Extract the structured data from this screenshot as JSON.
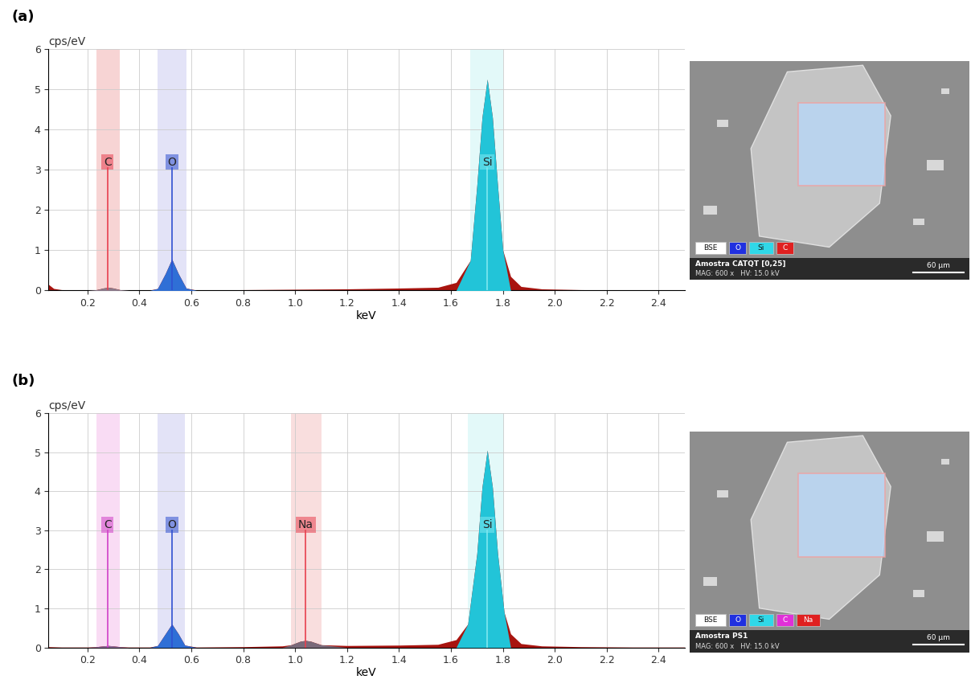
{
  "chart_data": [
    {
      "type": "area",
      "title": "(a)",
      "xlabel": "keV",
      "ylabel": "cps/eV",
      "xlim": [
        0.05,
        2.5
      ],
      "ylim": [
        0,
        6
      ],
      "xticks": [
        0.2,
        0.4,
        0.6,
        0.8,
        1.0,
        1.2,
        1.4,
        1.6,
        1.8,
        2.0,
        2.2,
        2.4
      ],
      "yticks": [
        0,
        1,
        2,
        3,
        4,
        5,
        6
      ],
      "grid": true,
      "color": "#a8140f",
      "x": [
        0.05,
        0.07,
        0.1,
        0.2,
        0.235,
        0.26,
        0.28,
        0.3,
        0.325,
        0.36,
        0.44,
        0.47,
        0.5,
        0.525,
        0.55,
        0.58,
        0.62,
        0.8,
        1.0,
        1.2,
        1.4,
        1.55,
        1.62,
        1.675,
        1.7,
        1.72,
        1.74,
        1.76,
        1.78,
        1.8,
        1.83,
        1.87,
        1.95,
        2.1,
        2.3,
        2.5
      ],
      "values": [
        0.15,
        0.05,
        0.02,
        0.01,
        0.02,
        0.06,
        0.08,
        0.06,
        0.02,
        0.01,
        0.01,
        0.05,
        0.42,
        0.78,
        0.42,
        0.06,
        0.01,
        0.02,
        0.03,
        0.04,
        0.06,
        0.08,
        0.2,
        0.75,
        2.6,
        4.3,
        5.25,
        4.3,
        2.6,
        1.0,
        0.35,
        0.1,
        0.04,
        0.02,
        0.01,
        0.01
      ],
      "elements": [
        {
          "label": "C",
          "energy": 0.277,
          "band": [
            0.235,
            0.325
          ],
          "marker_height": 3.05,
          "color": "#e8404f",
          "fill_color": "#8c7a8a",
          "band_color": "#f6caca"
        },
        {
          "label": "O",
          "energy": 0.525,
          "band": [
            0.47,
            0.58
          ],
          "marker_height": 3.05,
          "color": "#3050d0",
          "fill_color": "#2f6fd6",
          "band_color": "#dcdcf6"
        },
        {
          "label": "Si",
          "energy": 1.74,
          "band": [
            1.675,
            1.8
          ],
          "marker_height": 3.05,
          "color": "#7fe8f0",
          "fill_color": "#22c4d8",
          "band_color": "#dcf8f8"
        }
      ]
    },
    {
      "type": "area",
      "title": "(b)",
      "xlabel": "keV",
      "ylabel": "cps/eV",
      "xlim": [
        0.05,
        2.5
      ],
      "ylim": [
        0,
        6
      ],
      "xticks": [
        0.2,
        0.4,
        0.6,
        0.8,
        1.0,
        1.2,
        1.4,
        1.6,
        1.8,
        2.0,
        2.2,
        2.4
      ],
      "yticks": [
        0,
        1,
        2,
        3,
        4,
        5,
        6
      ],
      "grid": true,
      "color": "#a8140f",
      "x": [
        0.05,
        0.1,
        0.2,
        0.235,
        0.26,
        0.28,
        0.3,
        0.325,
        0.36,
        0.44,
        0.47,
        0.5,
        0.525,
        0.55,
        0.575,
        0.62,
        0.8,
        0.95,
        0.985,
        1.02,
        1.04,
        1.06,
        1.1,
        1.2,
        1.4,
        1.55,
        1.62,
        1.665,
        1.7,
        1.72,
        1.74,
        1.76,
        1.78,
        1.805,
        1.83,
        1.87,
        1.95,
        2.1,
        2.3,
        2.5
      ],
      "values": [
        0.02,
        0.01,
        0.01,
        0.02,
        0.04,
        0.05,
        0.04,
        0.02,
        0.01,
        0.01,
        0.05,
        0.35,
        0.6,
        0.35,
        0.06,
        0.01,
        0.02,
        0.04,
        0.07,
        0.16,
        0.18,
        0.16,
        0.07,
        0.05,
        0.06,
        0.08,
        0.2,
        0.6,
        2.4,
        4.1,
        5.05,
        4.1,
        2.4,
        0.9,
        0.35,
        0.1,
        0.04,
        0.02,
        0.01,
        0.01
      ],
      "elements": [
        {
          "label": "C",
          "energy": 0.277,
          "band": [
            0.235,
            0.325
          ],
          "marker_height": 3.0,
          "color": "#d040c8",
          "fill_color": "#8c6a9a",
          "band_color": "#f8d4f2"
        },
        {
          "label": "O",
          "energy": 0.525,
          "band": [
            0.47,
            0.575
          ],
          "marker_height": 3.0,
          "color": "#3050d0",
          "fill_color": "#2f6fd6",
          "band_color": "#dcdcf6"
        },
        {
          "label": "Na",
          "energy": 1.041,
          "band": [
            0.985,
            1.1
          ],
          "marker_height": 3.0,
          "color": "#e8404f",
          "fill_color": "#7a6a7a",
          "band_color": "#f8d6d6"
        },
        {
          "label": "Si",
          "energy": 1.74,
          "band": [
            1.665,
            1.805
          ],
          "marker_height": 3.0,
          "color": "#7fe8f0",
          "fill_color": "#22c4d8",
          "band_color": "#dcf8f8"
        }
      ]
    }
  ],
  "images": [
    {
      "caption": "Amostra CATQT [0,25]",
      "settings": "MAG: 600 x   HV: 15.0 kV",
      "scale_bar": "60 µm",
      "legend": [
        {
          "label": "BSE",
          "color": "#ffffff"
        },
        {
          "label": "O",
          "color": "#2030e0"
        },
        {
          "label": "Si",
          "color": "#30d8e8"
        },
        {
          "label": "C",
          "color": "#e02020"
        }
      ]
    },
    {
      "caption": "Amostra PS1",
      "settings": "MAG: 600 x   HV: 15.0 kV",
      "scale_bar": "60 µm",
      "legend": [
        {
          "label": "BSE",
          "color": "#ffffff"
        },
        {
          "label": "O",
          "color": "#2030e0"
        },
        {
          "label": "Si",
          "color": "#30d8e8"
        },
        {
          "label": "C",
          "color": "#e030d8"
        },
        {
          "label": "Na",
          "color": "#e02020"
        }
      ]
    }
  ]
}
